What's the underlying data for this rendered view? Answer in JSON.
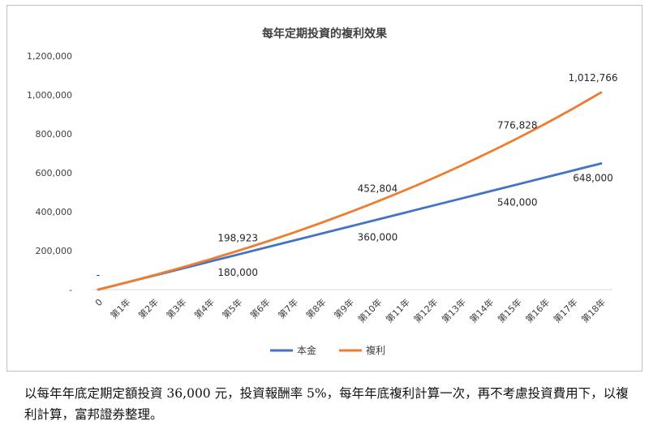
{
  "chart_data": {
    "type": "line",
    "title": "每年定期投資的複利效果",
    "categories": [
      "0",
      "第1年",
      "第2年",
      "第3年",
      "第4年",
      "第5年",
      "第6年",
      "第7年",
      "第8年",
      "第9年",
      "第10年",
      "第11年",
      "第12年",
      "第13年",
      "第14年",
      "第15年",
      "第16年",
      "第17年",
      "第18年"
    ],
    "ylim": [
      0,
      1200000
    ],
    "y_ticks": [
      0,
      200000,
      400000,
      600000,
      800000,
      1000000,
      1200000
    ],
    "y_tick_labels": [
      "-",
      "200,000",
      "400,000",
      "600,000",
      "800,000",
      "1,000,000",
      "1,200,000"
    ],
    "grid": false,
    "legend_position": "bottom",
    "series": [
      {
        "name": "本金",
        "color": "#4472C4",
        "values": [
          0,
          36000,
          72000,
          108000,
          144000,
          180000,
          216000,
          252000,
          288000,
          324000,
          360000,
          396000,
          432000,
          468000,
          504000,
          540000,
          576000,
          612000,
          648000
        ],
        "labels": [
          {
            "index": 0,
            "text": "-"
          },
          {
            "index": 5,
            "text": "180,000"
          },
          {
            "index": 10,
            "text": "360,000"
          },
          {
            "index": 15,
            "text": "540,000"
          },
          {
            "index": 18,
            "text": "648,000"
          }
        ]
      },
      {
        "name": "複利",
        "color": "#ED7D31",
        "values": [
          0,
          36000,
          73800,
          113490,
          155165,
          198923,
          244869,
          293112,
          343768,
          396956,
          452804,
          511444,
          573016,
          637667,
          705551,
          776828,
          851670,
          930253,
          1012766
        ],
        "labels": [
          {
            "index": 5,
            "text": "198,923"
          },
          {
            "index": 10,
            "text": "452,804"
          },
          {
            "index": 15,
            "text": "776,828"
          },
          {
            "index": 18,
            "text": "1,012,766"
          }
        ]
      }
    ]
  },
  "caption": "以每年年底定期定額投資 36,000 元，投資報酬率 5%，每年年底複利計算一次，再不考慮投資費用下，以複利計算，富邦證券整理。"
}
